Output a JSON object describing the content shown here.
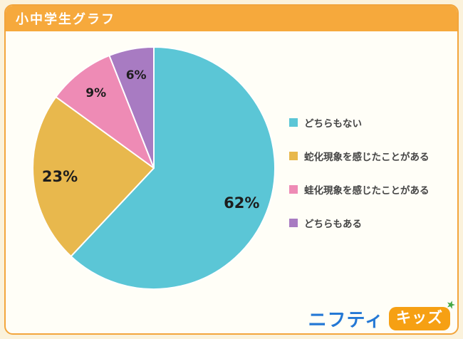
{
  "header": {
    "title": "小中学生グラフ"
  },
  "chart_data": {
    "type": "pie",
    "title": "小中学生グラフ",
    "direction": "clockwise",
    "start_angle_deg_from_top": 0,
    "legend_position": "right",
    "slices": [
      {
        "label": "どちらもない",
        "value": 62,
        "display": "62%",
        "color": "#5BC6D6"
      },
      {
        "label": "蛇化現象を感じたことがある",
        "value": 23,
        "display": "23%",
        "color": "#E8B84D"
      },
      {
        "label": "蛙化現象を感じたことがある",
        "value": 9,
        "display": "9%",
        "color": "#EE8BB5"
      },
      {
        "label": "どちらもある",
        "value": 6,
        "display": "6%",
        "color": "#A87BC2"
      }
    ]
  },
  "footer": {
    "brand_blue": "ニフティ",
    "brand_badge": "キッズ",
    "star_icon": "star-icon"
  },
  "colors": {
    "page_background": "#FBF2DB",
    "card_background": "#FFFEF7",
    "card_border": "#F2A53C",
    "title_bar": "#F6A93C",
    "title_text": "#FFFFFF",
    "brand_blue": "#2478D5",
    "badge_orange": "#F6A013",
    "star_green": "#45A845"
  }
}
